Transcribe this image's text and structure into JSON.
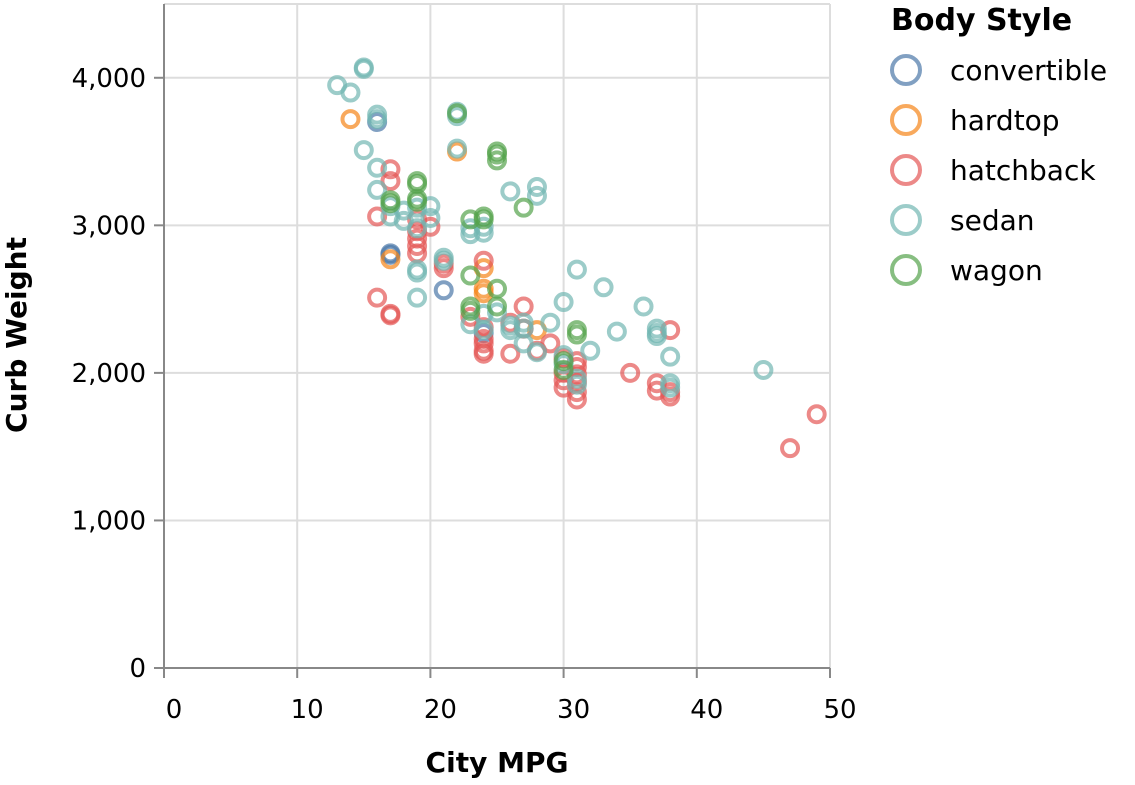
{
  "chart_data": {
    "type": "scatter",
    "title": "",
    "xlabel": "City MPG",
    "ylabel": "Curb Weight",
    "xlim": [
      0,
      50
    ],
    "ylim": [
      0,
      4500
    ],
    "x_ticks": [
      "0",
      "10",
      "20",
      "30",
      "40",
      "50"
    ],
    "y_ticks": [
      "0",
      "1,000",
      "2,000",
      "3,000",
      "4,000"
    ],
    "grid": true,
    "legend_title": "Body Style",
    "legend_position": "top-right",
    "series": [
      {
        "name": "convertible",
        "color": "#4c78a8",
        "points": [
          [
            16,
            3700
          ],
          [
            17,
            2800
          ],
          [
            17,
            2810
          ],
          [
            21,
            2560
          ],
          [
            24,
            2270
          ]
        ]
      },
      {
        "name": "hardtop",
        "color": "#f58518",
        "points": [
          [
            14,
            3720
          ],
          [
            17,
            2770
          ],
          [
            22,
            3500
          ],
          [
            24,
            2570
          ],
          [
            24,
            2710
          ],
          [
            24,
            2540
          ],
          [
            28,
            2290
          ]
        ]
      },
      {
        "name": "hatchback",
        "color": "#e45756",
        "points": [
          [
            16,
            2510
          ],
          [
            16,
            3060
          ],
          [
            17,
            2400
          ],
          [
            17,
            2390
          ],
          [
            17,
            3380
          ],
          [
            17,
            3300
          ],
          [
            19,
            2810
          ],
          [
            19,
            2860
          ],
          [
            19,
            3040
          ],
          [
            19,
            2910
          ],
          [
            19,
            2960
          ],
          [
            20,
            2990
          ],
          [
            21,
            2710
          ],
          [
            21,
            2740
          ],
          [
            23,
            2380
          ],
          [
            24,
            2200
          ],
          [
            24,
            2150
          ],
          [
            24,
            2230
          ],
          [
            24,
            2310
          ],
          [
            24,
            2130
          ],
          [
            24,
            2760
          ],
          [
            26,
            2130
          ],
          [
            26,
            2340
          ],
          [
            27,
            2450
          ],
          [
            27,
            2300
          ],
          [
            28,
            2150
          ],
          [
            29,
            2200
          ],
          [
            30,
            1900
          ],
          [
            30,
            1950
          ],
          [
            30,
            2000
          ],
          [
            30,
            2100
          ],
          [
            31,
            1820
          ],
          [
            31,
            1870
          ],
          [
            31,
            1940
          ],
          [
            31,
            2040
          ],
          [
            31,
            1990
          ],
          [
            31,
            2080
          ],
          [
            35,
            2000
          ],
          [
            37,
            1880
          ],
          [
            37,
            1930
          ],
          [
            38,
            1840
          ],
          [
            38,
            1870
          ],
          [
            38,
            2290
          ],
          [
            47,
            1490
          ],
          [
            49,
            1720
          ]
        ]
      },
      {
        "name": "sedan",
        "color": "#72b7b2",
        "points": [
          [
            13,
            3950
          ],
          [
            14,
            3900
          ],
          [
            15,
            4060
          ],
          [
            15,
            4070
          ],
          [
            15,
            3510
          ],
          [
            16,
            3750
          ],
          [
            16,
            3720
          ],
          [
            16,
            3390
          ],
          [
            16,
            3240
          ],
          [
            17,
            3130
          ],
          [
            17,
            3060
          ],
          [
            18,
            3030
          ],
          [
            18,
            3100
          ],
          [
            19,
            3120
          ],
          [
            19,
            2510
          ],
          [
            19,
            2680
          ],
          [
            19,
            2700
          ],
          [
            19,
            2980
          ],
          [
            20,
            3130
          ],
          [
            20,
            3050
          ],
          [
            21,
            2760
          ],
          [
            21,
            2780
          ],
          [
            22,
            3770
          ],
          [
            22,
            3740
          ],
          [
            22,
            3520
          ],
          [
            23,
            2940
          ],
          [
            23,
            2980
          ],
          [
            23,
            2330
          ],
          [
            24,
            2290
          ],
          [
            24,
            2990
          ],
          [
            24,
            2950
          ],
          [
            24,
            2400
          ],
          [
            25,
            2410
          ],
          [
            26,
            3230
          ],
          [
            26,
            2290
          ],
          [
            26,
            2320
          ],
          [
            27,
            2300
          ],
          [
            27,
            2340
          ],
          [
            27,
            2200
          ],
          [
            28,
            3260
          ],
          [
            28,
            3200
          ],
          [
            28,
            2140
          ],
          [
            29,
            2340
          ],
          [
            30,
            2480
          ],
          [
            30,
            2120
          ],
          [
            30,
            2060
          ],
          [
            31,
            2700
          ],
          [
            31,
            1920
          ],
          [
            31,
            1960
          ],
          [
            32,
            2150
          ],
          [
            33,
            2580
          ],
          [
            34,
            2280
          ],
          [
            36,
            2450
          ],
          [
            37,
            2300
          ],
          [
            37,
            2270
          ],
          [
            37,
            2250
          ],
          [
            38,
            1900
          ],
          [
            38,
            1930
          ],
          [
            38,
            2110
          ],
          [
            45,
            2020
          ]
        ]
      },
      {
        "name": "wagon",
        "color": "#54a24b",
        "points": [
          [
            17,
            3150
          ],
          [
            17,
            3170
          ],
          [
            19,
            3280
          ],
          [
            19,
            3300
          ],
          [
            19,
            3160
          ],
          [
            19,
            3180
          ],
          [
            22,
            3760
          ],
          [
            23,
            3040
          ],
          [
            23,
            2450
          ],
          [
            23,
            2420
          ],
          [
            23,
            2660
          ],
          [
            24,
            3040
          ],
          [
            24,
            3060
          ],
          [
            25,
            3480
          ],
          [
            25,
            3440
          ],
          [
            25,
            3500
          ],
          [
            25,
            2570
          ],
          [
            25,
            2450
          ],
          [
            27,
            3120
          ],
          [
            30,
            2080
          ],
          [
            30,
            2020
          ],
          [
            31,
            2290
          ],
          [
            31,
            2260
          ]
        ]
      }
    ]
  }
}
